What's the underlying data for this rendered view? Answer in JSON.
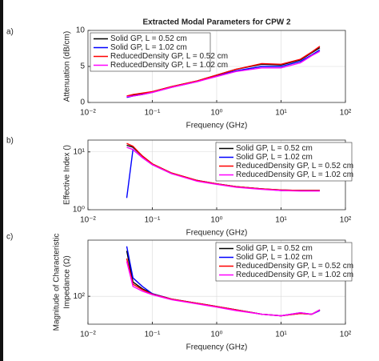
{
  "chart_data": [
    {
      "type": "line",
      "panel": "a)",
      "title": "Extracted Modal Parameters for CPW 2",
      "xlabel": "Frequency (GHz)",
      "ylabel": [
        "Attenuation (dB/cm)"
      ],
      "xlog": true,
      "ylog": false,
      "grid": true,
      "legend": "upper left",
      "xlim": [
        0.01,
        100
      ],
      "xticks": [
        {
          "value": 0.01,
          "label": "10⁻²"
        },
        {
          "value": 0.1,
          "label": "10⁻¹"
        },
        {
          "value": 1,
          "label": "10⁰"
        },
        {
          "value": 10,
          "label": "10¹"
        },
        {
          "value": 100,
          "label": "10²"
        }
      ],
      "ylim": [
        0,
        10
      ],
      "yticks": [
        0,
        5,
        10
      ],
      "x": [
        0.04,
        0.05,
        0.07,
        0.1,
        0.2,
        0.5,
        1,
        2,
        5,
        10,
        20,
        30,
        40
      ],
      "series": [
        {
          "name": "Solid GP, L = 0.52 cm",
          "color": "#000000",
          "values": [
            0.8,
            1.0,
            1.2,
            1.5,
            2.2,
            3.0,
            3.8,
            4.6,
            5.3,
            5.2,
            5.9,
            6.9,
            7.6
          ]
        },
        {
          "name": "Solid GP, L = 1.02 cm",
          "color": "#0000ff",
          "values": [
            0.7,
            0.9,
            1.1,
            1.4,
            2.1,
            2.9,
            3.7,
            4.4,
            5.0,
            5.0,
            5.7,
            6.6,
            7.3
          ]
        },
        {
          "name": "ReducedDensity GP, L = 0.52 cm",
          "color": "#ff0000",
          "values": [
            0.9,
            1.1,
            1.3,
            1.5,
            2.2,
            3.0,
            3.8,
            4.6,
            5.4,
            5.3,
            6.0,
            7.0,
            7.8
          ]
        },
        {
          "name": "ReducedDensity GP, L = 1.02 cm",
          "color": "#ff00ff",
          "values": [
            0.8,
            0.9,
            1.1,
            1.4,
            2.1,
            2.9,
            3.6,
            4.3,
            4.8,
            4.8,
            5.5,
            6.5,
            7.1
          ]
        }
      ]
    },
    {
      "type": "line",
      "panel": "b)",
      "xlabel": "Frequency (GHz)",
      "ylabel": [
        "Effective Index ()"
      ],
      "xlog": true,
      "ylog": true,
      "grid": true,
      "legend": "upper right",
      "xlim": [
        0.01,
        100
      ],
      "xticks": [
        {
          "value": 0.01,
          "label": "10⁻²"
        },
        {
          "value": 0.1,
          "label": "10⁻¹"
        },
        {
          "value": 1,
          "label": "10⁰"
        },
        {
          "value": 10,
          "label": "10¹"
        },
        {
          "value": 100,
          "label": "10²"
        }
      ],
      "ylim": [
        1,
        16
      ],
      "yticks": [
        {
          "value": 1,
          "label": "10⁰"
        },
        {
          "value": 10,
          "label": "10¹"
        }
      ],
      "x": [
        0.04,
        0.05,
        0.07,
        0.1,
        0.2,
        0.5,
        1,
        2,
        5,
        10,
        20,
        30,
        40
      ],
      "series": [
        {
          "name": "Solid GP, L = 0.52 cm",
          "color": "#000000",
          "values": [
            13,
            12,
            8.5,
            6.2,
            4.3,
            3.2,
            2.8,
            2.5,
            2.3,
            2.2,
            2.15,
            2.15,
            2.15
          ]
        },
        {
          "name": "Solid GP, L = 1.02 cm",
          "color": "#0000ff",
          "values": [
            1.6,
            11,
            8,
            6,
            4.2,
            3.2,
            2.8,
            2.5,
            2.3,
            2.15,
            2.15,
            2.15,
            2.15
          ]
        },
        {
          "name": "ReducedDensity GP, L = 0.52 cm",
          "color": "#ff0000",
          "values": [
            14,
            12.5,
            8.5,
            6.2,
            4.3,
            3.2,
            2.8,
            2.5,
            2.3,
            2.2,
            2.15,
            2.15,
            2.15
          ]
        },
        {
          "name": "ReducedDensity GP, L = 1.02 cm",
          "color": "#ff00ff",
          "values": [
            12,
            11,
            8,
            6,
            4.2,
            3.1,
            2.75,
            2.45,
            2.25,
            2.15,
            2.1,
            2.1,
            2.1
          ]
        }
      ]
    },
    {
      "type": "line",
      "panel": "c)",
      "xlabel": "Frequency (GHz)",
      "ylabel": [
        "Magnitude of Characteristic",
        "Impedance (Ω)"
      ],
      "xlog": true,
      "ylog": true,
      "grid": true,
      "legend": "upper right",
      "xlim": [
        0.01,
        100
      ],
      "xticks": [
        {
          "value": 0.01,
          "label": "10⁻²"
        },
        {
          "value": 0.1,
          "label": "10⁻¹"
        },
        {
          "value": 1,
          "label": "10⁰"
        },
        {
          "value": 10,
          "label": "10¹"
        },
        {
          "value": 100,
          "label": "10²"
        }
      ],
      "ylim": [
        60,
        280
      ],
      "yticks": [
        {
          "value": 100,
          "label": "10²"
        }
      ],
      "x": [
        0.04,
        0.05,
        0.07,
        0.1,
        0.2,
        0.5,
        1,
        2,
        5,
        10,
        20,
        30,
        40
      ],
      "series": [
        {
          "name": "Solid GP, L = 0.52 cm",
          "color": "#000000",
          "values": [
            230,
            130,
            115,
            105,
            95,
            88,
            83,
            78,
            72,
            70,
            73,
            72,
            78
          ]
        },
        {
          "name": "Solid GP, L = 1.02 cm",
          "color": "#0000ff",
          "values": [
            250,
            140,
            120,
            105,
            95,
            88,
            83,
            78,
            72,
            70,
            74,
            72,
            77
          ]
        },
        {
          "name": "ReducedDensity GP, L = 0.52 cm",
          "color": "#ff0000",
          "values": [
            200,
            125,
            113,
            104,
            95,
            88,
            83,
            78,
            72,
            70,
            73,
            72,
            78
          ]
        },
        {
          "name": "ReducedDensity GP, L = 1.02 cm",
          "color": "#ff00ff",
          "values": [
            190,
            120,
            110,
            103,
            94,
            87,
            82,
            77,
            72,
            70,
            74,
            72,
            78
          ]
        }
      ]
    }
  ]
}
